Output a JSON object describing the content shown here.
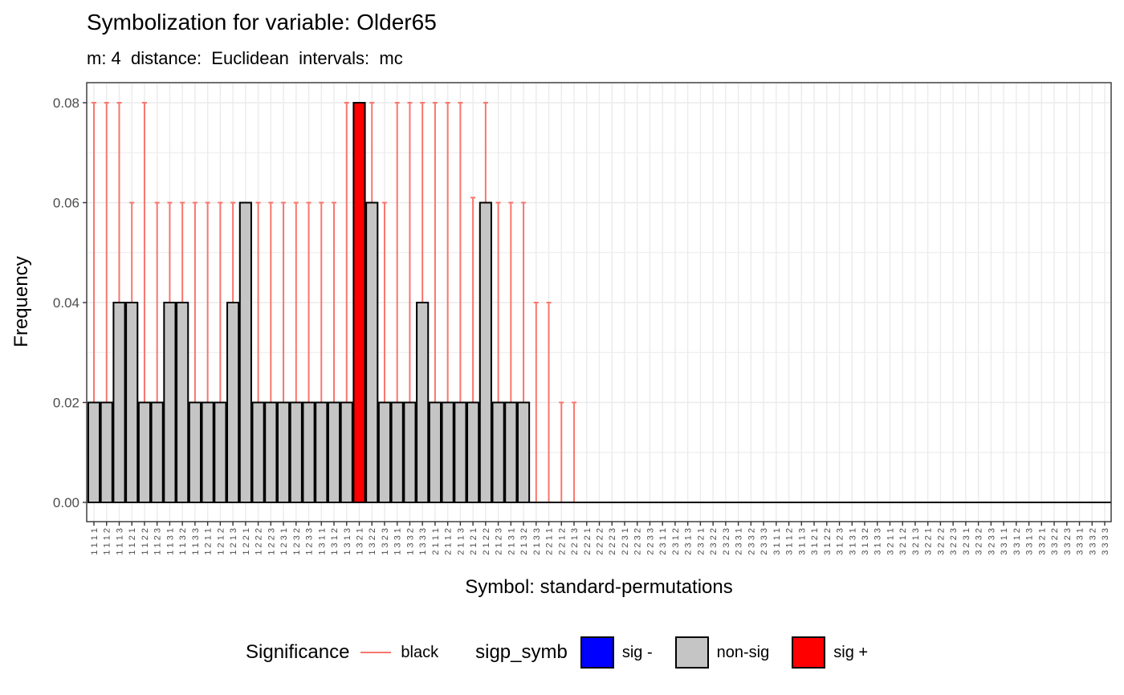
{
  "colors": {
    "errorbar": "#f8766d",
    "sig_minus": "#0000ff",
    "non_sig": "#c5c5c5",
    "sig_plus": "#ff0000",
    "grid": "#ebebeb"
  },
  "legend": {
    "significance_title": "Significance",
    "significance_label": "black",
    "sigp_title": "sigp_symb",
    "items": [
      {
        "label": "sig -",
        "color": "#0000ff"
      },
      {
        "label": "non-sig",
        "color": "#c5c5c5"
      },
      {
        "label": "sig +",
        "color": "#ff0000"
      }
    ]
  },
  "chart_data": {
    "type": "bar",
    "title": "Symbolization for variable: Older65",
    "subtitle": "m: 4  distance:  Euclidean  intervals:  mc",
    "xlabel": "Symbol: standard-permutations",
    "ylabel": "Frequency",
    "ylim": [
      0,
      0.08
    ],
    "yticks": [
      "0.00",
      "0.02",
      "0.04",
      "0.06",
      "0.08"
    ],
    "grid": true,
    "legend_position": "bottom",
    "categories": [
      "1111",
      "1112",
      "1113",
      "1121",
      "1122",
      "1123",
      "1131",
      "1132",
      "1133",
      "1211",
      "1212",
      "1213",
      "1221",
      "1222",
      "1223",
      "1231",
      "1232",
      "1233",
      "1311",
      "1312",
      "1313",
      "1321",
      "1322",
      "1323",
      "1331",
      "1332",
      "1333",
      "2111",
      "2112",
      "2113",
      "2121",
      "2122",
      "2123",
      "2131",
      "2132",
      "2133",
      "2211",
      "2212",
      "2213",
      "2221",
      "2222",
      "2223",
      "2231",
      "2232",
      "2233",
      "2311",
      "2312",
      "2313",
      "2321",
      "2322",
      "2323",
      "2331",
      "2332",
      "2333",
      "3111",
      "3112",
      "3113",
      "3121",
      "3122",
      "3123",
      "3131",
      "3132",
      "3133",
      "3211",
      "3212",
      "3213",
      "3221",
      "3222",
      "3223",
      "3231",
      "3232",
      "3233",
      "3311",
      "3312",
      "3313",
      "3321",
      "3322",
      "3323",
      "3331",
      "3332",
      "3333"
    ],
    "values": [
      0.02,
      0.02,
      0.04,
      0.04,
      0.02,
      0.02,
      0.04,
      0.04,
      0.02,
      0.02,
      0.02,
      0.04,
      0.06,
      0.02,
      0.02,
      0.02,
      0.02,
      0.02,
      0.02,
      0.02,
      0.02,
      0.08,
      0.06,
      0.02,
      0.02,
      0.02,
      0.04,
      0.02,
      0.02,
      0.02,
      0.02,
      0.06,
      0.02,
      0.02,
      0.02,
      0,
      0,
      0,
      0,
      0,
      0,
      0,
      0,
      0,
      0,
      0,
      0,
      0,
      0,
      0,
      0,
      0,
      0,
      0,
      0,
      0,
      0,
      0,
      0,
      0,
      0,
      0,
      0,
      0,
      0,
      0,
      0,
      0,
      0,
      0,
      0,
      0,
      0,
      0,
      0,
      0,
      0,
      0,
      0,
      0,
      0
    ],
    "significance": [
      "non-sig",
      "non-sig",
      "non-sig",
      "non-sig",
      "non-sig",
      "non-sig",
      "non-sig",
      "non-sig",
      "non-sig",
      "non-sig",
      "non-sig",
      "non-sig",
      "non-sig",
      "non-sig",
      "non-sig",
      "non-sig",
      "non-sig",
      "non-sig",
      "non-sig",
      "non-sig",
      "non-sig",
      "sig +",
      "non-sig",
      "non-sig",
      "non-sig",
      "non-sig",
      "non-sig",
      "non-sig",
      "non-sig",
      "non-sig",
      "non-sig",
      "non-sig",
      "non-sig",
      "non-sig",
      "non-sig",
      "non-sig",
      "non-sig",
      "non-sig",
      "non-sig",
      "non-sig",
      "non-sig",
      "non-sig",
      "non-sig",
      "non-sig",
      "non-sig",
      "non-sig",
      "non-sig",
      "non-sig",
      "non-sig",
      "non-sig",
      "non-sig",
      "non-sig",
      "non-sig",
      "non-sig",
      "non-sig",
      "non-sig",
      "non-sig",
      "non-sig",
      "non-sig",
      "non-sig",
      "non-sig",
      "non-sig",
      "non-sig",
      "non-sig",
      "non-sig",
      "non-sig",
      "non-sig",
      "non-sig",
      "non-sig",
      "non-sig",
      "non-sig",
      "non-sig",
      "non-sig",
      "non-sig",
      "non-sig",
      "non-sig",
      "non-sig",
      "non-sig",
      "non-sig",
      "non-sig",
      "non-sig"
    ],
    "interval_low": [
      0.02,
      0.02,
      0.02,
      0.02,
      0.02,
      0.02,
      0.02,
      0.02,
      0.02,
      0.02,
      0.02,
      0.02,
      0.02,
      0.02,
      0.02,
      0.02,
      0.02,
      0.02,
      0.02,
      0.02,
      0.02,
      0.02,
      0.02,
      0.02,
      0.02,
      0.02,
      0.02,
      0.02,
      0.0,
      0.0,
      0.0,
      0.0,
      0.0,
      0.0,
      0.0,
      0,
      0,
      0,
      0,
      0,
      0,
      0,
      0,
      0,
      0,
      0,
      0,
      0,
      0,
      0,
      0,
      0,
      0,
      0,
      0,
      0,
      0,
      0,
      0,
      0,
      0,
      0,
      0,
      0,
      0,
      0,
      0,
      0,
      0,
      0,
      0,
      0,
      0,
      0,
      0,
      0,
      0,
      0,
      0,
      0,
      0
    ],
    "interval_high": [
      0.08,
      0.08,
      0.08,
      0.06,
      0.08,
      0.06,
      0.06,
      0.06,
      0.06,
      0.06,
      0.06,
      0.06,
      0.06,
      0.06,
      0.06,
      0.06,
      0.06,
      0.06,
      0.06,
      0.06,
      0.08,
      0.08,
      0.08,
      0.06,
      0.08,
      0.08,
      0.08,
      0.08,
      0.08,
      0.08,
      0.061,
      0.08,
      0.06,
      0.06,
      0.06,
      0.04,
      0.04,
      0.02,
      0.02,
      0,
      0,
      0,
      0,
      0,
      0,
      0,
      0,
      0,
      0,
      0,
      0,
      0,
      0,
      0,
      0,
      0,
      0,
      0,
      0,
      0,
      0,
      0,
      0,
      0,
      0,
      0,
      0,
      0,
      0,
      0,
      0,
      0,
      0,
      0,
      0,
      0,
      0,
      0,
      0,
      0,
      0
    ]
  }
}
